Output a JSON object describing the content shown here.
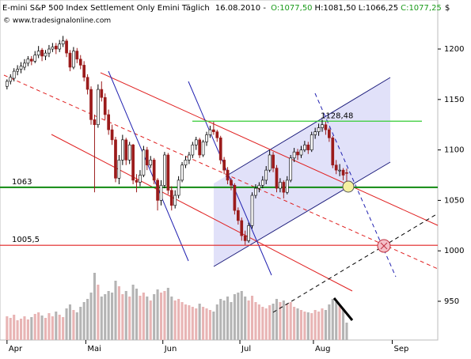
{
  "chart_data": {
    "type": "candlestick",
    "title": "E-mini S&P 500 Index Settlement Only Emini Täglich",
    "date": "16.08.2010 -",
    "header_values": [
      {
        "text": "O:1077,50",
        "color": "#1a9a1a"
      },
      {
        "text": "H:1081,50",
        "color": "#000000"
      },
      {
        "text": "L:1066,25",
        "color": "#000000"
      },
      {
        "text": "C:1077,25",
        "color": "#1a9a1a"
      }
    ],
    "source": "© www.tradesignalonline.com",
    "currency": "$",
    "up_color": "#ffffff",
    "down_color": "#9b1b1b",
    "volume_up_color": "#e8b4b4",
    "volume_down_color": "#b4b4b4",
    "open": [
      1163,
      1168,
      1171,
      1178,
      1180,
      1182,
      1186,
      1190,
      1188,
      1194,
      1199,
      1193,
      1196,
      1200,
      1203,
      1200,
      1205,
      1208,
      1196,
      1182,
      1198,
      1190,
      1184,
      1172,
      1160,
      1130,
      1125,
      1160,
      1152,
      1135,
      1120,
      1110,
      1072,
      1090,
      1110,
      1090,
      1105,
      1070,
      1068,
      1075,
      1100,
      1085,
      1090,
      1070,
      1050,
      1065,
      1095,
      1060,
      1045,
      1055,
      1070,
      1085,
      1090,
      1095,
      1105,
      1110,
      1095,
      1108,
      1115,
      1120,
      1118,
      1112,
      1090,
      1080,
      1070,
      1065,
      1040,
      1030,
      1015,
      1010,
      1025,
      1055,
      1062,
      1065,
      1070,
      1080,
      1095,
      1082,
      1062,
      1068,
      1058,
      1070,
      1092,
      1098,
      1095,
      1100,
      1105,
      1100,
      1115,
      1118,
      1122,
      1125,
      1120,
      1112,
      1085,
      1080,
      1080,
      1077.5
    ],
    "high": [
      1170,
      1175,
      1181,
      1184,
      1187,
      1190,
      1193,
      1193,
      1198,
      1203,
      1201,
      1199,
      1204,
      1206,
      1206,
      1209,
      1213,
      1210,
      1199,
      1202,
      1201,
      1194,
      1188,
      1175,
      1163,
      1135,
      1165,
      1168,
      1156,
      1140,
      1125,
      1113,
      1095,
      1115,
      1112,
      1108,
      1106,
      1076,
      1080,
      1104,
      1103,
      1094,
      1092,
      1072,
      1070,
      1098,
      1097,
      1064,
      1060,
      1074,
      1088,
      1094,
      1098,
      1108,
      1113,
      1112,
      1110,
      1118,
      1124,
      1128,
      1120,
      1114,
      1093,
      1083,
      1072,
      1067,
      1043,
      1033,
      1020,
      1028,
      1058,
      1066,
      1068,
      1074,
      1084,
      1100,
      1098,
      1085,
      1072,
      1070,
      1074,
      1095,
      1102,
      1101,
      1104,
      1109,
      1108,
      1118,
      1122,
      1126,
      1130,
      1128,
      1122,
      1114,
      1090,
      1086,
      1082,
      1081.5
    ],
    "low": [
      1160,
      1165,
      1168,
      1174,
      1176,
      1179,
      1183,
      1184,
      1186,
      1191,
      1188,
      1189,
      1192,
      1197,
      1195,
      1197,
      1202,
      1192,
      1178,
      1180,
      1186,
      1180,
      1168,
      1155,
      1125,
      1058,
      1122,
      1148,
      1130,
      1115,
      1105,
      1068,
      1066,
      1085,
      1085,
      1086,
      1066,
      1058,
      1064,
      1073,
      1080,
      1082,
      1066,
      1040,
      1045,
      1062,
      1056,
      1040,
      1042,
      1052,
      1068,
      1082,
      1086,
      1092,
      1100,
      1092,
      1093,
      1104,
      1112,
      1115,
      1108,
      1086,
      1076,
      1066,
      1060,
      1036,
      1026,
      1010,
      1006,
      1008,
      1022,
      1052,
      1058,
      1062,
      1066,
      1078,
      1078,
      1058,
      1058,
      1052,
      1056,
      1068,
      1088,
      1090,
      1092,
      1098,
      1096,
      1098,
      1111,
      1114,
      1118,
      1115,
      1108,
      1082,
      1076,
      1074,
      1070,
      1066.25
    ],
    "close": [
      1168,
      1172,
      1178,
      1180,
      1183,
      1186,
      1190,
      1188,
      1194,
      1198,
      1193,
      1196,
      1200,
      1202,
      1200,
      1205,
      1208,
      1196,
      1182,
      1198,
      1190,
      1184,
      1172,
      1160,
      1130,
      1125,
      1160,
      1152,
      1135,
      1120,
      1110,
      1072,
      1090,
      1110,
      1090,
      1105,
      1070,
      1068,
      1075,
      1100,
      1085,
      1090,
      1070,
      1050,
      1065,
      1095,
      1060,
      1045,
      1055,
      1070,
      1085,
      1090,
      1095,
      1105,
      1110,
      1095,
      1108,
      1115,
      1120,
      1118,
      1112,
      1090,
      1080,
      1070,
      1065,
      1040,
      1030,
      1015,
      1010,
      1025,
      1055,
      1062,
      1065,
      1070,
      1080,
      1095,
      1082,
      1062,
      1068,
      1058,
      1070,
      1092,
      1098,
      1095,
      1100,
      1105,
      1100,
      1115,
      1118,
      1122,
      1125,
      1120,
      1112,
      1085,
      1080,
      1080,
      1075,
      1077.25
    ],
    "volume": [
      30,
      28,
      32,
      25,
      27,
      30,
      26,
      29,
      33,
      35,
      31,
      28,
      34,
      30,
      36,
      32,
      29,
      40,
      45,
      38,
      35,
      42,
      48,
      52,
      60,
      85,
      70,
      55,
      58,
      62,
      60,
      75,
      68,
      58,
      62,
      55,
      70,
      65,
      56,
      60,
      55,
      50,
      58,
      64,
      60,
      62,
      66,
      55,
      50,
      52,
      48,
      45,
      44,
      42,
      40,
      46,
      42,
      40,
      38,
      36,
      45,
      52,
      50,
      55,
      48,
      58,
      60,
      62,
      55,
      50,
      56,
      48,
      45,
      42,
      40,
      44,
      46,
      52,
      48,
      50,
      46,
      48,
      42,
      40,
      38,
      36,
      35,
      34,
      38,
      36,
      40,
      38,
      45,
      52,
      48,
      44,
      40,
      22
    ],
    "volume_lim": [
      0,
      100
    ],
    "xlim": [
      -2,
      123
    ],
    "xticks": [
      {
        "value": 0,
        "label": "Apr"
      },
      {
        "value": 22.5,
        "label": "Mai"
      },
      {
        "value": 44.5,
        "label": "Jun"
      },
      {
        "value": 66.5,
        "label": "Jul"
      },
      {
        "value": 87.5,
        "label": "Aug"
      },
      {
        "value": 110,
        "label": "Sep"
      }
    ],
    "ylim": [
      911.6,
      1248.6
    ],
    "yticks": [
      950,
      1000,
      1050,
      1100,
      1150,
      1200
    ],
    "hlines": [
      {
        "value": 1063,
        "label": "1063",
        "color": "#108a10"
      },
      {
        "value": 1005.5,
        "label": "1005,5",
        "color": "#e02020"
      },
      {
        "value": 1128.48,
        "label": "1128,48",
        "color": "#33cc33"
      }
    ]
  }
}
